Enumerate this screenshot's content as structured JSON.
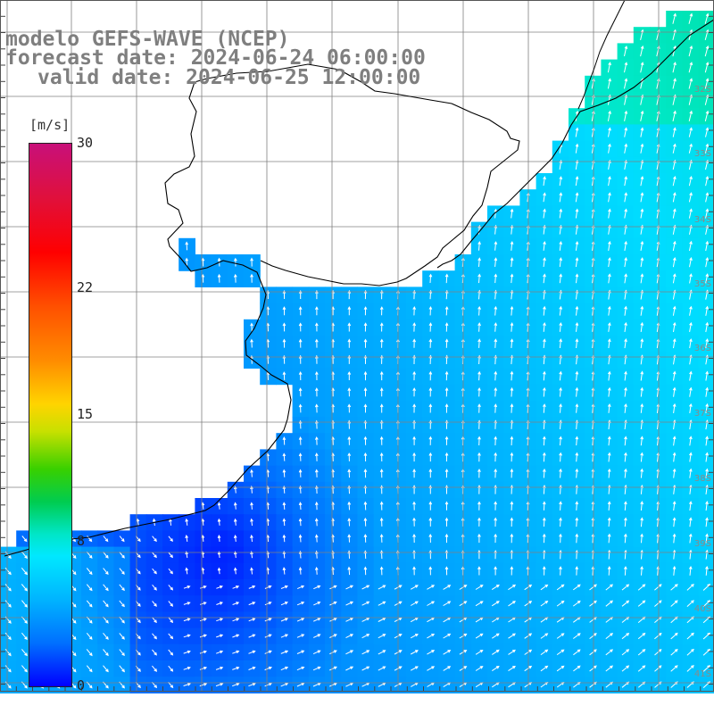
{
  "title": {
    "line1": "modelo GEFS-WAVE (NCEP)",
    "line2": "forecast date: 2024-06-24 06:00:00",
    "line3": "valid date: 2024-06-25 12:00:00"
  },
  "colorbar": {
    "units": "[m/s]",
    "ticks": [
      {
        "label": "30",
        "value": 30
      },
      {
        "label": "22",
        "value": 22
      },
      {
        "label": "15",
        "value": 15
      },
      {
        "label": "8",
        "value": 8
      },
      {
        "label": "0",
        "value": 0
      }
    ],
    "range": [
      0,
      30
    ]
  },
  "grid": {
    "lat_labels": [
      "32S",
      "33S",
      "34S",
      "35S",
      "36S",
      "37S",
      "38S",
      "39S",
      "40S",
      "41S"
    ]
  },
  "colors": {
    "land": "#ffffff",
    "coastline": "#000000",
    "gridline": "#808080",
    "arrows": "#ffffff",
    "low_speed": "#0000ff",
    "mid_speed": "#00aaff",
    "high_speed": "#00e6c8"
  },
  "field": {
    "variable": "wind speed",
    "speed_range_shown": [
      2,
      9
    ]
  }
}
